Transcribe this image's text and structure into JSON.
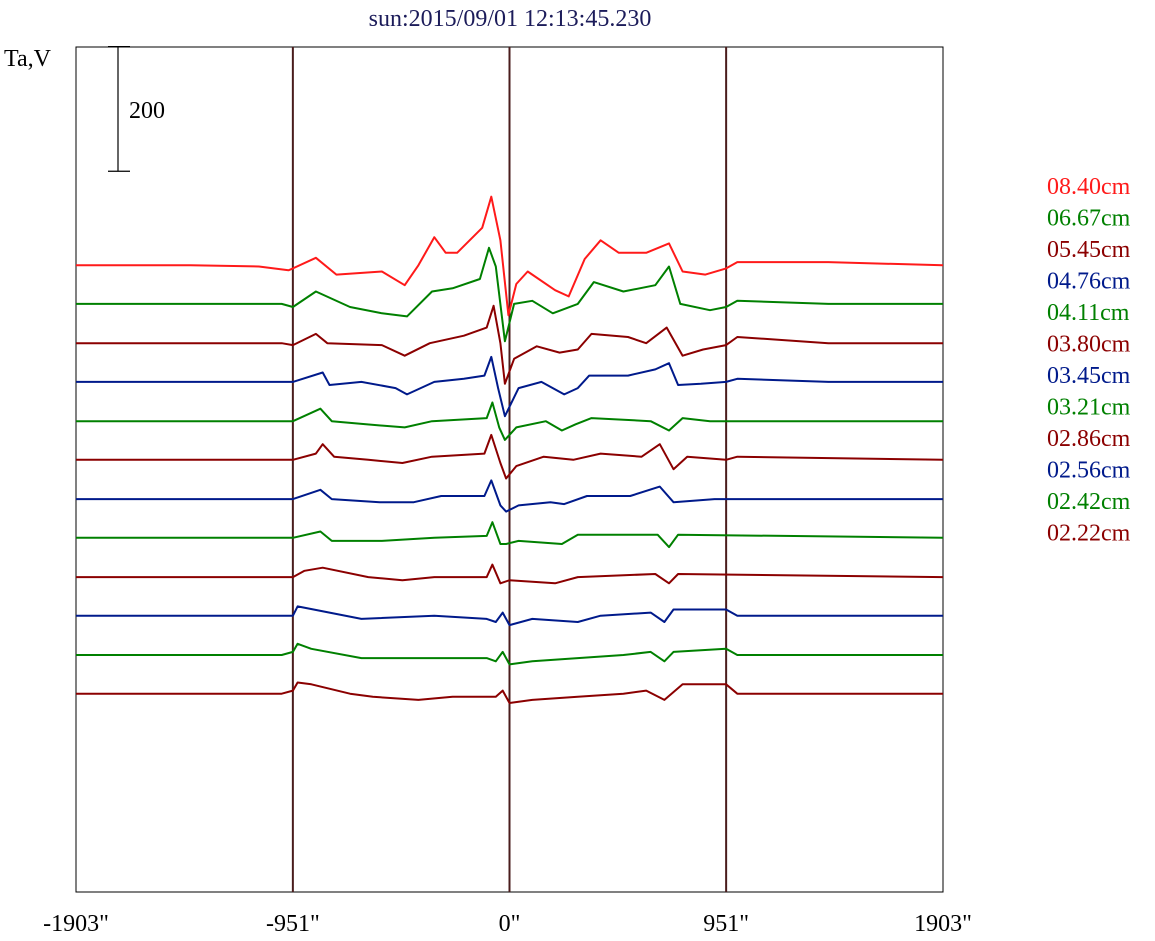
{
  "chart_data": {
    "type": "line",
    "title": "sun:2015/09/01 12:13:45.230",
    "ylabel": "Ta,V",
    "scale_bar": {
      "label": "200",
      "value": 200
    },
    "xlim": [
      -1903,
      1903
    ],
    "x_ticks": [
      {
        "value": -1903,
        "label": "-1903\""
      },
      {
        "value": -951,
        "label": "-951\""
      },
      {
        "value": 0,
        "label": "0\""
      },
      {
        "value": 951,
        "label": "951\""
      },
      {
        "value": 1903,
        "label": "1903\""
      }
    ],
    "markers": [
      -951,
      0,
      951
    ],
    "colors": {
      "marker": "#4a1c1c",
      "frame": "#000000",
      "title": "#1c1c5a"
    },
    "ylim": [
      -1005,
      350
    ],
    "series": [
      {
        "name": "08.40cm",
        "color": "#ff1a1a",
        "baseline": 0,
        "points": [
          [
            -1903,
            0
          ],
          [
            -1400,
            0
          ],
          [
            -1100,
            -2
          ],
          [
            -970,
            -8
          ],
          [
            -951,
            -5
          ],
          [
            -850,
            12
          ],
          [
            -760,
            -15
          ],
          [
            -560,
            -10
          ],
          [
            -460,
            -32
          ],
          [
            -400,
            0
          ],
          [
            -330,
            45
          ],
          [
            -280,
            20
          ],
          [
            -230,
            20
          ],
          [
            -120,
            60
          ],
          [
            -80,
            110
          ],
          [
            -40,
            40
          ],
          [
            -5,
            -80
          ],
          [
            30,
            -30
          ],
          [
            80,
            -10
          ],
          [
            200,
            -40
          ],
          [
            260,
            -50
          ],
          [
            330,
            10
          ],
          [
            400,
            40
          ],
          [
            480,
            20
          ],
          [
            600,
            20
          ],
          [
            700,
            35
          ],
          [
            760,
            -10
          ],
          [
            860,
            -15
          ],
          [
            951,
            -5
          ],
          [
            1000,
            5
          ],
          [
            1400,
            5
          ],
          [
            1903,
            0
          ]
        ]
      },
      {
        "name": "06.67cm",
        "color": "#008000",
        "baseline": -62,
        "points": [
          [
            -1903,
            0
          ],
          [
            -1000,
            0
          ],
          [
            -951,
            -5
          ],
          [
            -850,
            20
          ],
          [
            -700,
            -5
          ],
          [
            -560,
            -15
          ],
          [
            -450,
            -20
          ],
          [
            -340,
            20
          ],
          [
            -250,
            25
          ],
          [
            -130,
            40
          ],
          [
            -90,
            90
          ],
          [
            -60,
            60
          ],
          [
            -20,
            -60
          ],
          [
            20,
            0
          ],
          [
            100,
            5
          ],
          [
            190,
            -15
          ],
          [
            300,
            0
          ],
          [
            370,
            35
          ],
          [
            500,
            20
          ],
          [
            640,
            30
          ],
          [
            700,
            60
          ],
          [
            750,
            0
          ],
          [
            880,
            -10
          ],
          [
            951,
            -5
          ],
          [
            1000,
            5
          ],
          [
            1400,
            0
          ],
          [
            1903,
            0
          ]
        ]
      },
      {
        "name": "05.45cm",
        "color": "#8b0000",
        "baseline": -125,
        "points": [
          [
            -1903,
            0
          ],
          [
            -1000,
            0
          ],
          [
            -951,
            -3
          ],
          [
            -850,
            15
          ],
          [
            -800,
            0
          ],
          [
            -560,
            -3
          ],
          [
            -460,
            -20
          ],
          [
            -350,
            0
          ],
          [
            -200,
            12
          ],
          [
            -100,
            25
          ],
          [
            -70,
            60
          ],
          [
            -40,
            0
          ],
          [
            -20,
            -65
          ],
          [
            20,
            -25
          ],
          [
            120,
            -5
          ],
          [
            220,
            -15
          ],
          [
            300,
            -10
          ],
          [
            360,
            15
          ],
          [
            520,
            10
          ],
          [
            600,
            0
          ],
          [
            690,
            25
          ],
          [
            760,
            -20
          ],
          [
            850,
            -10
          ],
          [
            951,
            -3
          ],
          [
            1000,
            10
          ],
          [
            1400,
            0
          ],
          [
            1903,
            0
          ]
        ]
      },
      {
        "name": "04.76cm",
        "color": "#001a8b",
        "baseline": -187,
        "points": [
          [
            -1903,
            0
          ],
          [
            -1000,
            0
          ],
          [
            -951,
            0
          ],
          [
            -820,
            15
          ],
          [
            -790,
            -5
          ],
          [
            -650,
            0
          ],
          [
            -500,
            -10
          ],
          [
            -450,
            -20
          ],
          [
            -330,
            0
          ],
          [
            -200,
            5
          ],
          [
            -110,
            10
          ],
          [
            -80,
            40
          ],
          [
            -50,
            -10
          ],
          [
            -20,
            -55
          ],
          [
            40,
            -10
          ],
          [
            140,
            0
          ],
          [
            240,
            -20
          ],
          [
            300,
            -10
          ],
          [
            350,
            10
          ],
          [
            520,
            10
          ],
          [
            640,
            20
          ],
          [
            700,
            30
          ],
          [
            740,
            -5
          ],
          [
            840,
            -3
          ],
          [
            951,
            0
          ],
          [
            1000,
            5
          ],
          [
            1400,
            0
          ],
          [
            1903,
            0
          ]
        ]
      },
      {
        "name": "04.11cm",
        "color": "#008000",
        "baseline": -250,
        "points": [
          [
            -1903,
            0
          ],
          [
            -1000,
            0
          ],
          [
            -951,
            0
          ],
          [
            -830,
            20
          ],
          [
            -780,
            0
          ],
          [
            -630,
            -5
          ],
          [
            -460,
            -10
          ],
          [
            -340,
            0
          ],
          [
            -100,
            5
          ],
          [
            -75,
            30
          ],
          [
            -45,
            -10
          ],
          [
            -20,
            -30
          ],
          [
            30,
            -10
          ],
          [
            160,
            0
          ],
          [
            230,
            -15
          ],
          [
            290,
            -5
          ],
          [
            360,
            5
          ],
          [
            620,
            0
          ],
          [
            700,
            -15
          ],
          [
            760,
            5
          ],
          [
            880,
            0
          ],
          [
            1903,
            0
          ]
        ]
      },
      {
        "name": "03.80cm",
        "color": "#8b0000",
        "baseline": -312,
        "points": [
          [
            -1903,
            0
          ],
          [
            -1000,
            0
          ],
          [
            -951,
            0
          ],
          [
            -850,
            10
          ],
          [
            -820,
            25
          ],
          [
            -770,
            5
          ],
          [
            -620,
            0
          ],
          [
            -470,
            -5
          ],
          [
            -340,
            5
          ],
          [
            -110,
            10
          ],
          [
            -80,
            40
          ],
          [
            -40,
            -5
          ],
          [
            -15,
            -30
          ],
          [
            30,
            -10
          ],
          [
            150,
            5
          ],
          [
            280,
            0
          ],
          [
            400,
            10
          ],
          [
            580,
            5
          ],
          [
            660,
            25
          ],
          [
            720,
            -15
          ],
          [
            780,
            5
          ],
          [
            951,
            0
          ],
          [
            1000,
            5
          ],
          [
            1903,
            0
          ]
        ]
      },
      {
        "name": "03.45cm",
        "color": "#001a8b",
        "baseline": -375,
        "points": [
          [
            -1903,
            0
          ],
          [
            -1000,
            0
          ],
          [
            -951,
            0
          ],
          [
            -830,
            15
          ],
          [
            -780,
            0
          ],
          [
            -570,
            -5
          ],
          [
            -420,
            -5
          ],
          [
            -300,
            5
          ],
          [
            -110,
            5
          ],
          [
            -80,
            30
          ],
          [
            -40,
            -10
          ],
          [
            -15,
            -20
          ],
          [
            40,
            -10
          ],
          [
            180,
            -5
          ],
          [
            240,
            -8
          ],
          [
            340,
            5
          ],
          [
            530,
            5
          ],
          [
            660,
            20
          ],
          [
            720,
            -5
          ],
          [
            900,
            0
          ],
          [
            1903,
            0
          ]
        ]
      },
      {
        "name": "03.21cm",
        "color": "#008000",
        "baseline": -437,
        "points": [
          [
            -1903,
            0
          ],
          [
            -1000,
            0
          ],
          [
            -951,
            0
          ],
          [
            -830,
            10
          ],
          [
            -780,
            -5
          ],
          [
            -560,
            -5
          ],
          [
            -330,
            0
          ],
          [
            -100,
            3
          ],
          [
            -75,
            25
          ],
          [
            -40,
            -10
          ],
          [
            -15,
            -10
          ],
          [
            40,
            -5
          ],
          [
            230,
            -10
          ],
          [
            300,
            5
          ],
          [
            650,
            5
          ],
          [
            700,
            -15
          ],
          [
            740,
            5
          ],
          [
            1903,
            0
          ]
        ]
      },
      {
        "name": "02.86cm",
        "color": "#8b0000",
        "baseline": -500,
        "points": [
          [
            -1903,
            0
          ],
          [
            -1000,
            0
          ],
          [
            -951,
            0
          ],
          [
            -900,
            10
          ],
          [
            -820,
            15
          ],
          [
            -620,
            0
          ],
          [
            -470,
            -5
          ],
          [
            -330,
            0
          ],
          [
            -100,
            0
          ],
          [
            -75,
            20
          ],
          [
            -40,
            -10
          ],
          [
            0,
            -5
          ],
          [
            200,
            -10
          ],
          [
            300,
            0
          ],
          [
            640,
            5
          ],
          [
            700,
            -10
          ],
          [
            740,
            5
          ],
          [
            1903,
            0
          ]
        ]
      },
      {
        "name": "02.56cm",
        "color": "#001a8b",
        "baseline": -562,
        "points": [
          [
            -1903,
            0
          ],
          [
            -1000,
            0
          ],
          [
            -951,
            0
          ],
          [
            -930,
            15
          ],
          [
            -860,
            10
          ],
          [
            -650,
            -5
          ],
          [
            -330,
            0
          ],
          [
            -100,
            -5
          ],
          [
            -60,
            -10
          ],
          [
            -30,
            5
          ],
          [
            0,
            -15
          ],
          [
            100,
            -5
          ],
          [
            300,
            -10
          ],
          [
            400,
            0
          ],
          [
            620,
            5
          ],
          [
            680,
            -10
          ],
          [
            720,
            10
          ],
          [
            951,
            10
          ],
          [
            1000,
            0
          ],
          [
            1903,
            0
          ]
        ]
      },
      {
        "name": "02.42cm",
        "color": "#008000",
        "baseline": -625,
        "points": [
          [
            -1903,
            0
          ],
          [
            -1000,
            0
          ],
          [
            -951,
            5
          ],
          [
            -930,
            18
          ],
          [
            -870,
            10
          ],
          [
            -650,
            -5
          ],
          [
            -330,
            -5
          ],
          [
            -100,
            -5
          ],
          [
            -60,
            -10
          ],
          [
            -30,
            5
          ],
          [
            0,
            -15
          ],
          [
            100,
            -10
          ],
          [
            300,
            -5
          ],
          [
            500,
            0
          ],
          [
            620,
            5
          ],
          [
            680,
            -10
          ],
          [
            720,
            5
          ],
          [
            951,
            10
          ],
          [
            1000,
            0
          ],
          [
            1903,
            0
          ]
        ]
      },
      {
        "name": "02.22cm",
        "color": "#8b0000",
        "baseline": -687,
        "points": [
          [
            -1903,
            0
          ],
          [
            -1000,
            0
          ],
          [
            -951,
            5
          ],
          [
            -930,
            18
          ],
          [
            -870,
            15
          ],
          [
            -700,
            0
          ],
          [
            -600,
            -5
          ],
          [
            -400,
            -10
          ],
          [
            -250,
            -5
          ],
          [
            -100,
            -5
          ],
          [
            -60,
            -5
          ],
          [
            -30,
            5
          ],
          [
            0,
            -15
          ],
          [
            100,
            -10
          ],
          [
            300,
            -5
          ],
          [
            500,
            0
          ],
          [
            600,
            5
          ],
          [
            680,
            -10
          ],
          [
            760,
            15
          ],
          [
            951,
            15
          ],
          [
            1000,
            0
          ],
          [
            1903,
            0
          ]
        ]
      }
    ]
  }
}
